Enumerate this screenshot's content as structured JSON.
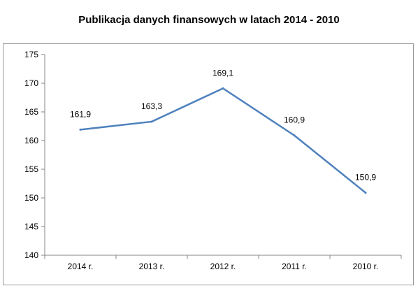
{
  "chart_data": {
    "type": "line",
    "title": "Publikacja danych finansowych w latach 2014 - 2010",
    "xlabel": "",
    "ylabel": "",
    "categories": [
      "2014 r.",
      "2013 r.",
      "2012 r.",
      "2011 r.",
      "2010 r."
    ],
    "series": [
      {
        "values": [
          161.9,
          163.3,
          169.1,
          160.9,
          150.9
        ],
        "data_labels": [
          "161,9",
          "163,3",
          "169,1",
          "160,9",
          "150,9"
        ],
        "color": "#4f81bd"
      }
    ],
    "ylim": [
      140,
      175
    ],
    "yticks": [
      140,
      145,
      150,
      155,
      160,
      165,
      170,
      175
    ],
    "grid": false,
    "legend": "none"
  }
}
